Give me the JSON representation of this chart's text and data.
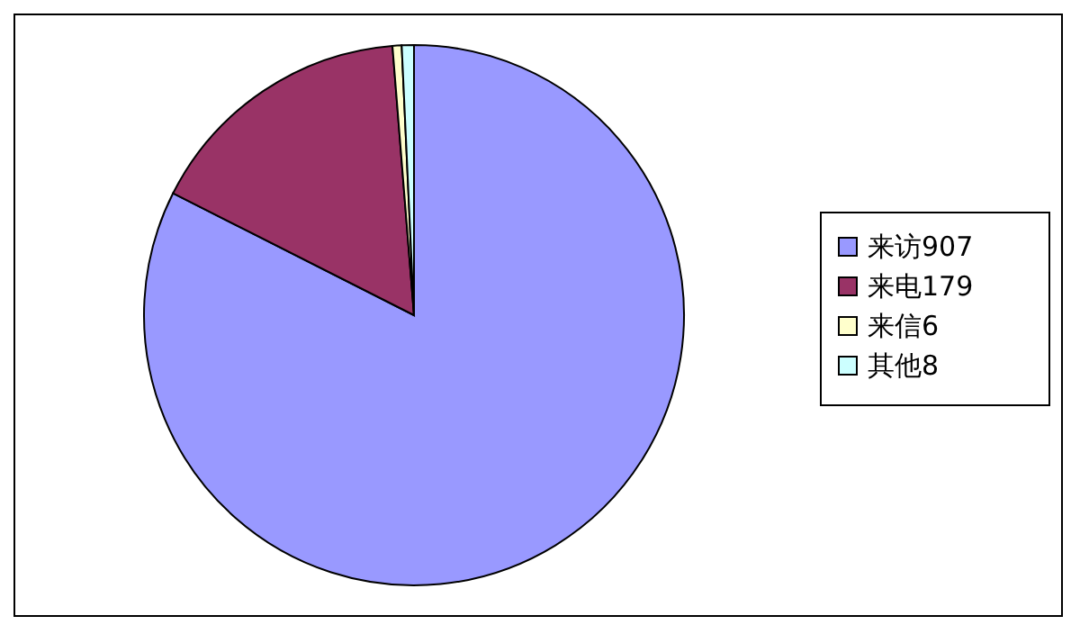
{
  "chart_data": {
    "type": "pie",
    "categories": [
      "来访907",
      "来电179",
      "来信6",
      "其他8"
    ],
    "values": [
      907,
      179,
      6,
      8
    ],
    "colors": [
      "#9999ff",
      "#993366",
      "#ffffcc",
      "#ccffff"
    ],
    "legend": "right"
  }
}
